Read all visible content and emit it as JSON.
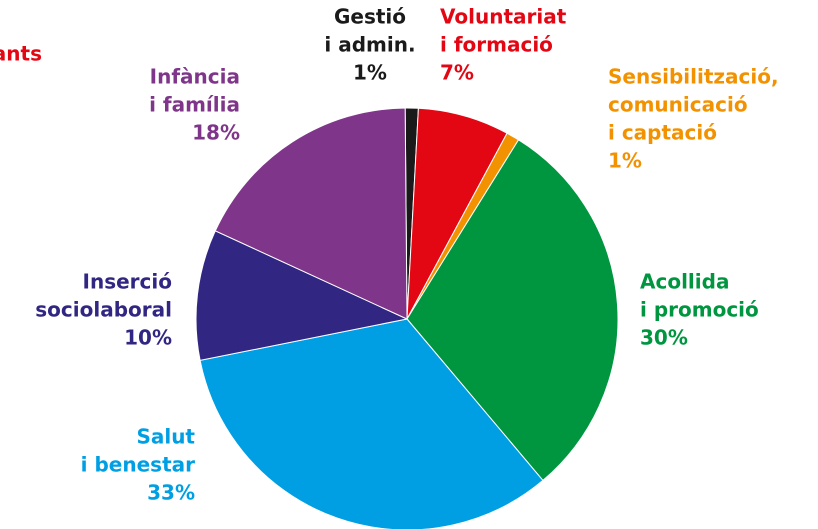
{
  "chart_data": {
    "type": "pie",
    "annotations": [
      "ants"
    ],
    "categories": [
      [
        "Gestió",
        "i admin."
      ],
      [
        "Voluntariat",
        "i formació"
      ],
      [
        "Sensibilització,",
        "comunicació",
        "i captació"
      ],
      [
        "Acollida",
        "i promoció"
      ],
      [
        "Salut",
        "i benestar"
      ],
      [
        "Inserció",
        "sociolaboral"
      ],
      [
        "Infància",
        "i família"
      ]
    ],
    "values": [
      1,
      7,
      1,
      30,
      33,
      10,
      18
    ],
    "value_labels": [
      "1%",
      "7%",
      "1%",
      "30%",
      "33%",
      "10%",
      "18%"
    ],
    "colors": [
      "#1a1a1a",
      "#e30613",
      "#f39200",
      "#009640",
      "#009fe3",
      "#312783",
      "#7f368a"
    ],
    "label_colors": [
      "#1a1a1a",
      "#e30613",
      "#f39200",
      "#009640",
      "#009fe3",
      "#312783",
      "#7f368a"
    ],
    "annotation_color": "#e30613"
  }
}
